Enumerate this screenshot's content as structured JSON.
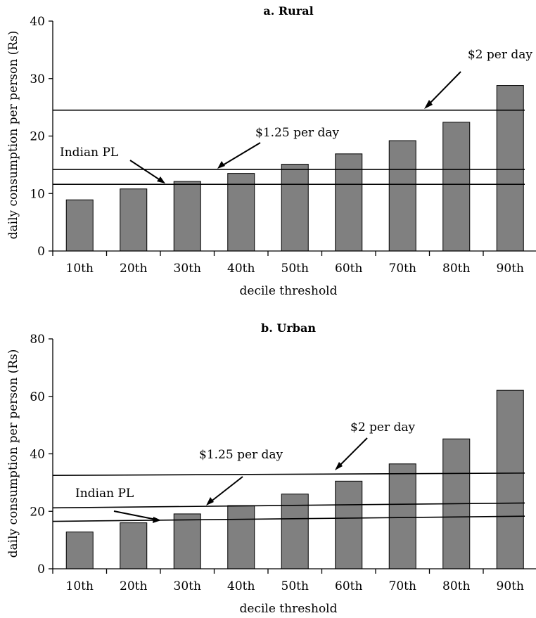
{
  "chart_data": [
    {
      "type": "bar",
      "title": "a. Rural",
      "xlabel": "decile threshold",
      "ylabel": "daily consumption per person (Rs)",
      "categories": [
        "10th",
        "20th",
        "30th",
        "40th",
        "50th",
        "60th",
        "70th",
        "80th",
        "90th"
      ],
      "values": [
        8.9,
        10.8,
        12.1,
        13.5,
        15.1,
        16.9,
        19.2,
        22.4,
        28.8
      ],
      "ylim": [
        0,
        40
      ],
      "yticks": [
        0,
        10,
        20,
        30,
        40
      ],
      "reference_lines": [
        {
          "label": "$2 per day",
          "start": 24.5,
          "end": 24.5
        },
        {
          "label": "$1.25 per day",
          "start": 14.2,
          "end": 14.2
        },
        {
          "label": "Indian PL",
          "start": 11.6,
          "end": 11.6
        }
      ]
    },
    {
      "type": "bar",
      "title": "b. Urban",
      "xlabel": "decile threshold",
      "ylabel": "daily consumption per person (Rs)",
      "categories": [
        "10th",
        "20th",
        "30th",
        "40th",
        "50th",
        "60th",
        "70th",
        "80th",
        "90th"
      ],
      "values": [
        12.8,
        16.0,
        19.1,
        22.0,
        26.0,
        30.5,
        36.5,
        45.2,
        62.1
      ],
      "ylim": [
        0,
        80
      ],
      "yticks": [
        0,
        20,
        40,
        60,
        80
      ],
      "reference_lines": [
        {
          "label": "$2 per day",
          "start": 32.5,
          "end": 33.3
        },
        {
          "label": "$1.25 per day",
          "start": 21.2,
          "end": 22.9
        },
        {
          "label": "Indian PL",
          "start": 16.5,
          "end": 18.3
        }
      ]
    }
  ]
}
